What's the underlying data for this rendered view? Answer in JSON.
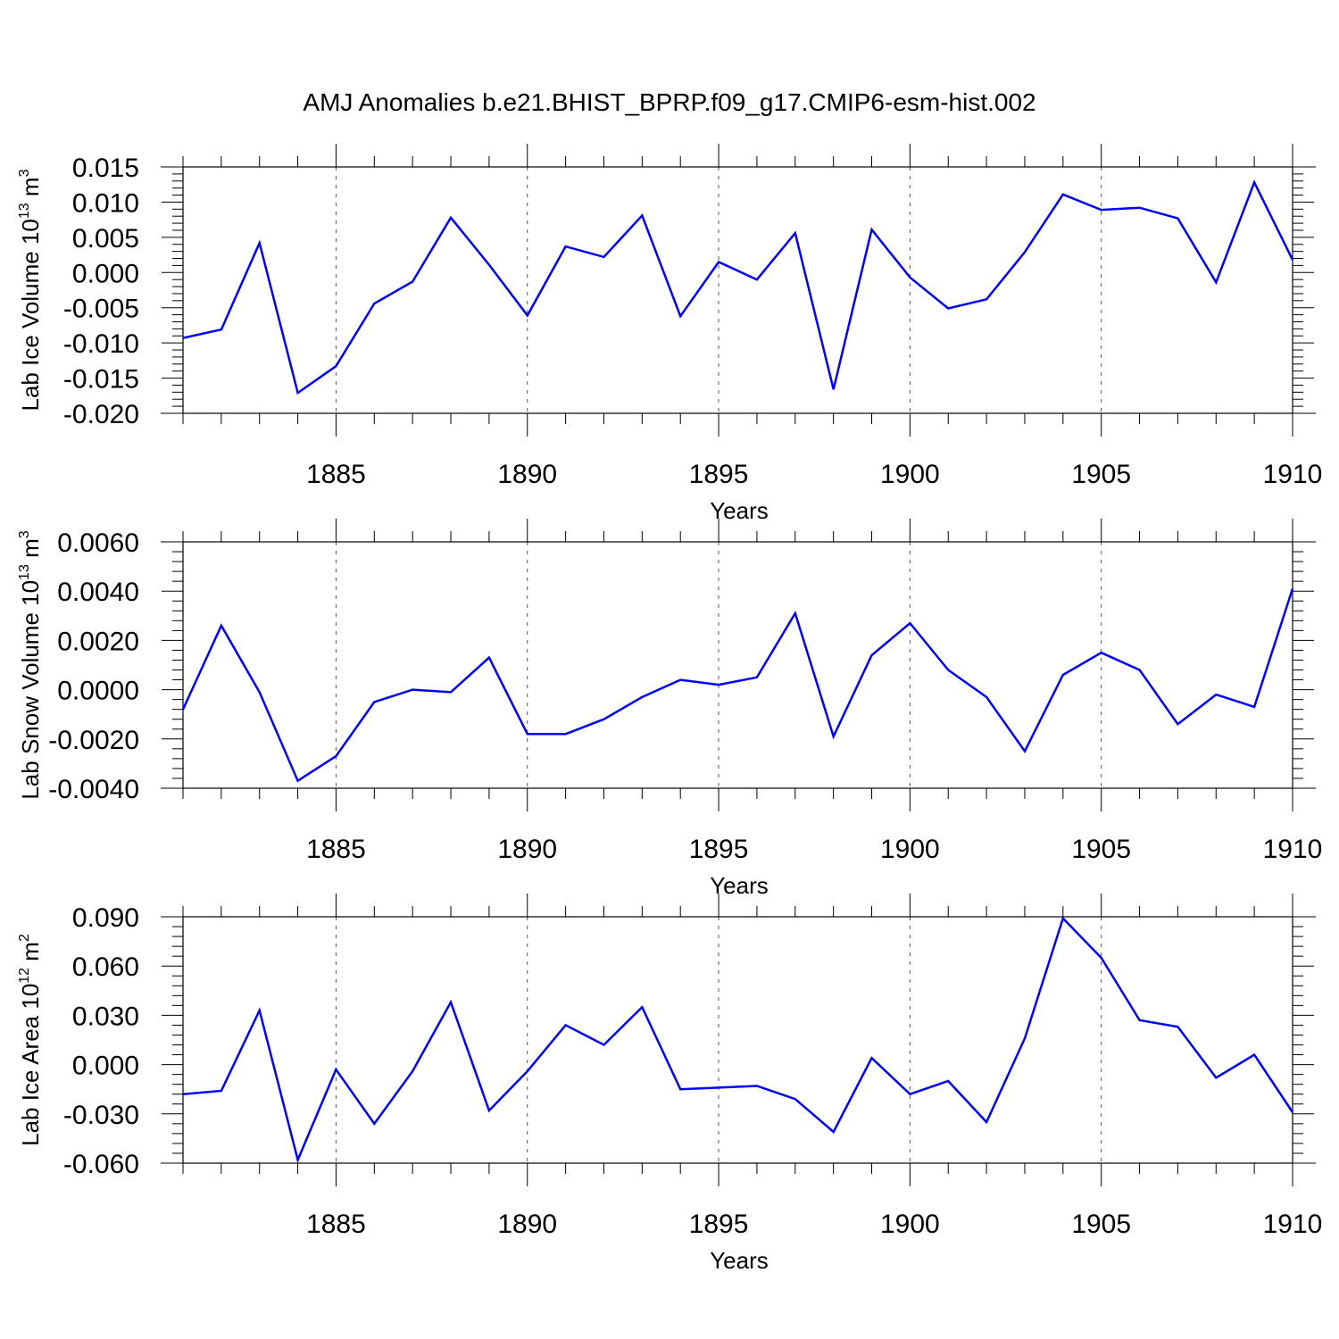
{
  "title": "AMJ Anomalies b.e21.BHIST_BPRP.f09_g17.CMIP6-esm-hist.002",
  "colors": {
    "series": "#0000ff",
    "axis": "#000000",
    "grid": "#555555"
  },
  "chart_data": [
    {
      "type": "line",
      "ylabel_main": "Lab Ice Volume 10",
      "ylabel_sup": "13",
      "ylabel_unit": " m",
      "ylabel_unit_sup": "3",
      "xlabel": "Years",
      "xlim": [
        1881,
        1910
      ],
      "ylim": [
        -0.02,
        0.015
      ],
      "yticks": [
        -0.02,
        -0.015,
        -0.01,
        -0.005,
        0.0,
        0.005,
        0.01,
        0.015
      ],
      "ytick_labels": [
        "-0.020",
        "-0.015",
        "-0.010",
        "-0.005",
        "0.000",
        "0.005",
        "0.010",
        "0.015"
      ],
      "xticks": [
        1885,
        1890,
        1895,
        1900,
        1905,
        1910
      ],
      "xtick_labels": [
        "1885",
        "1890",
        "1895",
        "1900",
        "1905",
        "1910"
      ],
      "x": [
        1881,
        1882,
        1883,
        1884,
        1885,
        1886,
        1887,
        1888,
        1889,
        1890,
        1891,
        1892,
        1893,
        1894,
        1895,
        1896,
        1897,
        1898,
        1899,
        1900,
        1901,
        1902,
        1903,
        1904,
        1905,
        1906,
        1907,
        1908,
        1909,
        1910
      ],
      "values": [
        -0.0093,
        -0.0081,
        0.0042,
        -0.0171,
        -0.0133,
        -0.0044,
        -0.0013,
        0.0078,
        0.0011,
        -0.0061,
        0.0037,
        0.0022,
        0.0081,
        -0.0062,
        0.0015,
        -0.001,
        0.0056,
        -0.0166,
        0.0061,
        -0.0007,
        -0.0051,
        -0.0038,
        0.0029,
        0.0111,
        0.0089,
        0.0092,
        0.0077,
        -0.0014,
        0.0128,
        0.0018
      ]
    },
    {
      "type": "line",
      "ylabel_main": "Lab Snow Volume 10",
      "ylabel_sup": "13",
      "ylabel_unit": " m",
      "ylabel_unit_sup": "3",
      "xlabel": "Years",
      "xlim": [
        1881,
        1910
      ],
      "ylim": [
        -0.004,
        0.006
      ],
      "yticks": [
        -0.004,
        -0.002,
        0.0,
        0.002,
        0.004,
        0.006
      ],
      "ytick_labels": [
        "-0.0040",
        "-0.0020",
        "0.0000",
        "0.0020",
        "0.0040",
        "0.0060"
      ],
      "xticks": [
        1885,
        1890,
        1895,
        1900,
        1905,
        1910
      ],
      "xtick_labels": [
        "1885",
        "1890",
        "1895",
        "1900",
        "1905",
        "1910"
      ],
      "x": [
        1881,
        1882,
        1883,
        1884,
        1885,
        1886,
        1887,
        1888,
        1889,
        1890,
        1891,
        1892,
        1893,
        1894,
        1895,
        1896,
        1897,
        1898,
        1899,
        1900,
        1901,
        1902,
        1903,
        1904,
        1905,
        1906,
        1907,
        1908,
        1909,
        1910
      ],
      "values": [
        -0.0008,
        0.0026,
        -0.0001,
        -0.0037,
        -0.0027,
        -0.0005,
        0.0,
        -0.0001,
        0.0013,
        -0.0018,
        -0.0018,
        -0.0012,
        -0.0003,
        0.0004,
        0.0002,
        0.0005,
        0.0031,
        -0.0019,
        0.0014,
        0.0027,
        0.0008,
        -0.0003,
        -0.0025,
        0.0006,
        0.0015,
        0.0008,
        -0.0014,
        -0.0002,
        -0.0007,
        0.0041
      ]
    },
    {
      "type": "line",
      "ylabel_main": "Lab Ice Area 10",
      "ylabel_sup": "12",
      "ylabel_unit": " m",
      "ylabel_unit_sup": "2",
      "xlabel": "Years",
      "xlim": [
        1881,
        1910
      ],
      "ylim": [
        -0.06,
        0.09
      ],
      "yticks": [
        -0.06,
        -0.03,
        0.0,
        0.03,
        0.06,
        0.09
      ],
      "ytick_labels": [
        "-0.060",
        "-0.030",
        "0.000",
        "0.030",
        "0.060",
        "0.090"
      ],
      "xticks": [
        1885,
        1890,
        1895,
        1900,
        1905,
        1910
      ],
      "xtick_labels": [
        "1885",
        "1890",
        "1895",
        "1900",
        "1905",
        "1910"
      ],
      "x": [
        1881,
        1882,
        1883,
        1884,
        1885,
        1886,
        1887,
        1888,
        1889,
        1890,
        1891,
        1892,
        1893,
        1894,
        1895,
        1896,
        1897,
        1898,
        1899,
        1900,
        1901,
        1902,
        1903,
        1904,
        1905,
        1906,
        1907,
        1908,
        1909,
        1910
      ],
      "values": [
        -0.018,
        -0.016,
        0.033,
        -0.058,
        -0.003,
        -0.036,
        -0.004,
        0.038,
        -0.028,
        -0.004,
        0.024,
        0.012,
        0.035,
        -0.015,
        -0.014,
        -0.013,
        -0.021,
        -0.041,
        0.004,
        -0.018,
        -0.01,
        -0.035,
        0.016,
        0.089,
        0.065,
        0.027,
        0.023,
        -0.008,
        0.006,
        -0.029
      ]
    }
  ]
}
